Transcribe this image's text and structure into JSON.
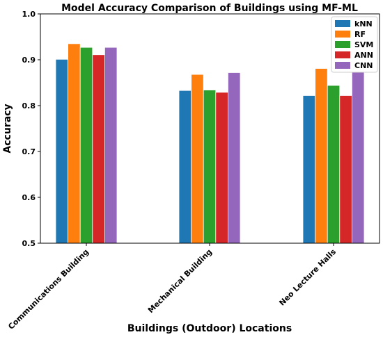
{
  "chart_data": {
    "type": "bar",
    "title": "Model Accuracy Comparison of Buildings using MF-ML",
    "xlabel": "Buildings (Outdoor) Locations",
    "ylabel": "Accuracy",
    "categories": [
      "Communications Building",
      "Mechanical Building",
      "Neo Lecture Halls"
    ],
    "ylim": [
      0.5,
      1.0
    ],
    "yticks": [
      "0.5",
      "0.6",
      "0.7",
      "0.8",
      "0.9",
      "1.0"
    ],
    "legend_position": "top-right",
    "grid": false,
    "series": [
      {
        "name": "kNN",
        "color": "#1f77b4",
        "values": [
          0.901,
          0.833,
          0.822
        ]
      },
      {
        "name": "RF",
        "color": "#ff7f0e",
        "values": [
          0.935,
          0.868,
          0.881
        ]
      },
      {
        "name": "SVM",
        "color": "#2ca02c",
        "values": [
          0.927,
          0.834,
          0.844
        ]
      },
      {
        "name": "ANN",
        "color": "#d62728",
        "values": [
          0.911,
          0.829,
          0.822
        ]
      },
      {
        "name": "CNN",
        "color": "#9467bd",
        "values": [
          0.927,
          0.872,
          0.88
        ]
      }
    ]
  }
}
